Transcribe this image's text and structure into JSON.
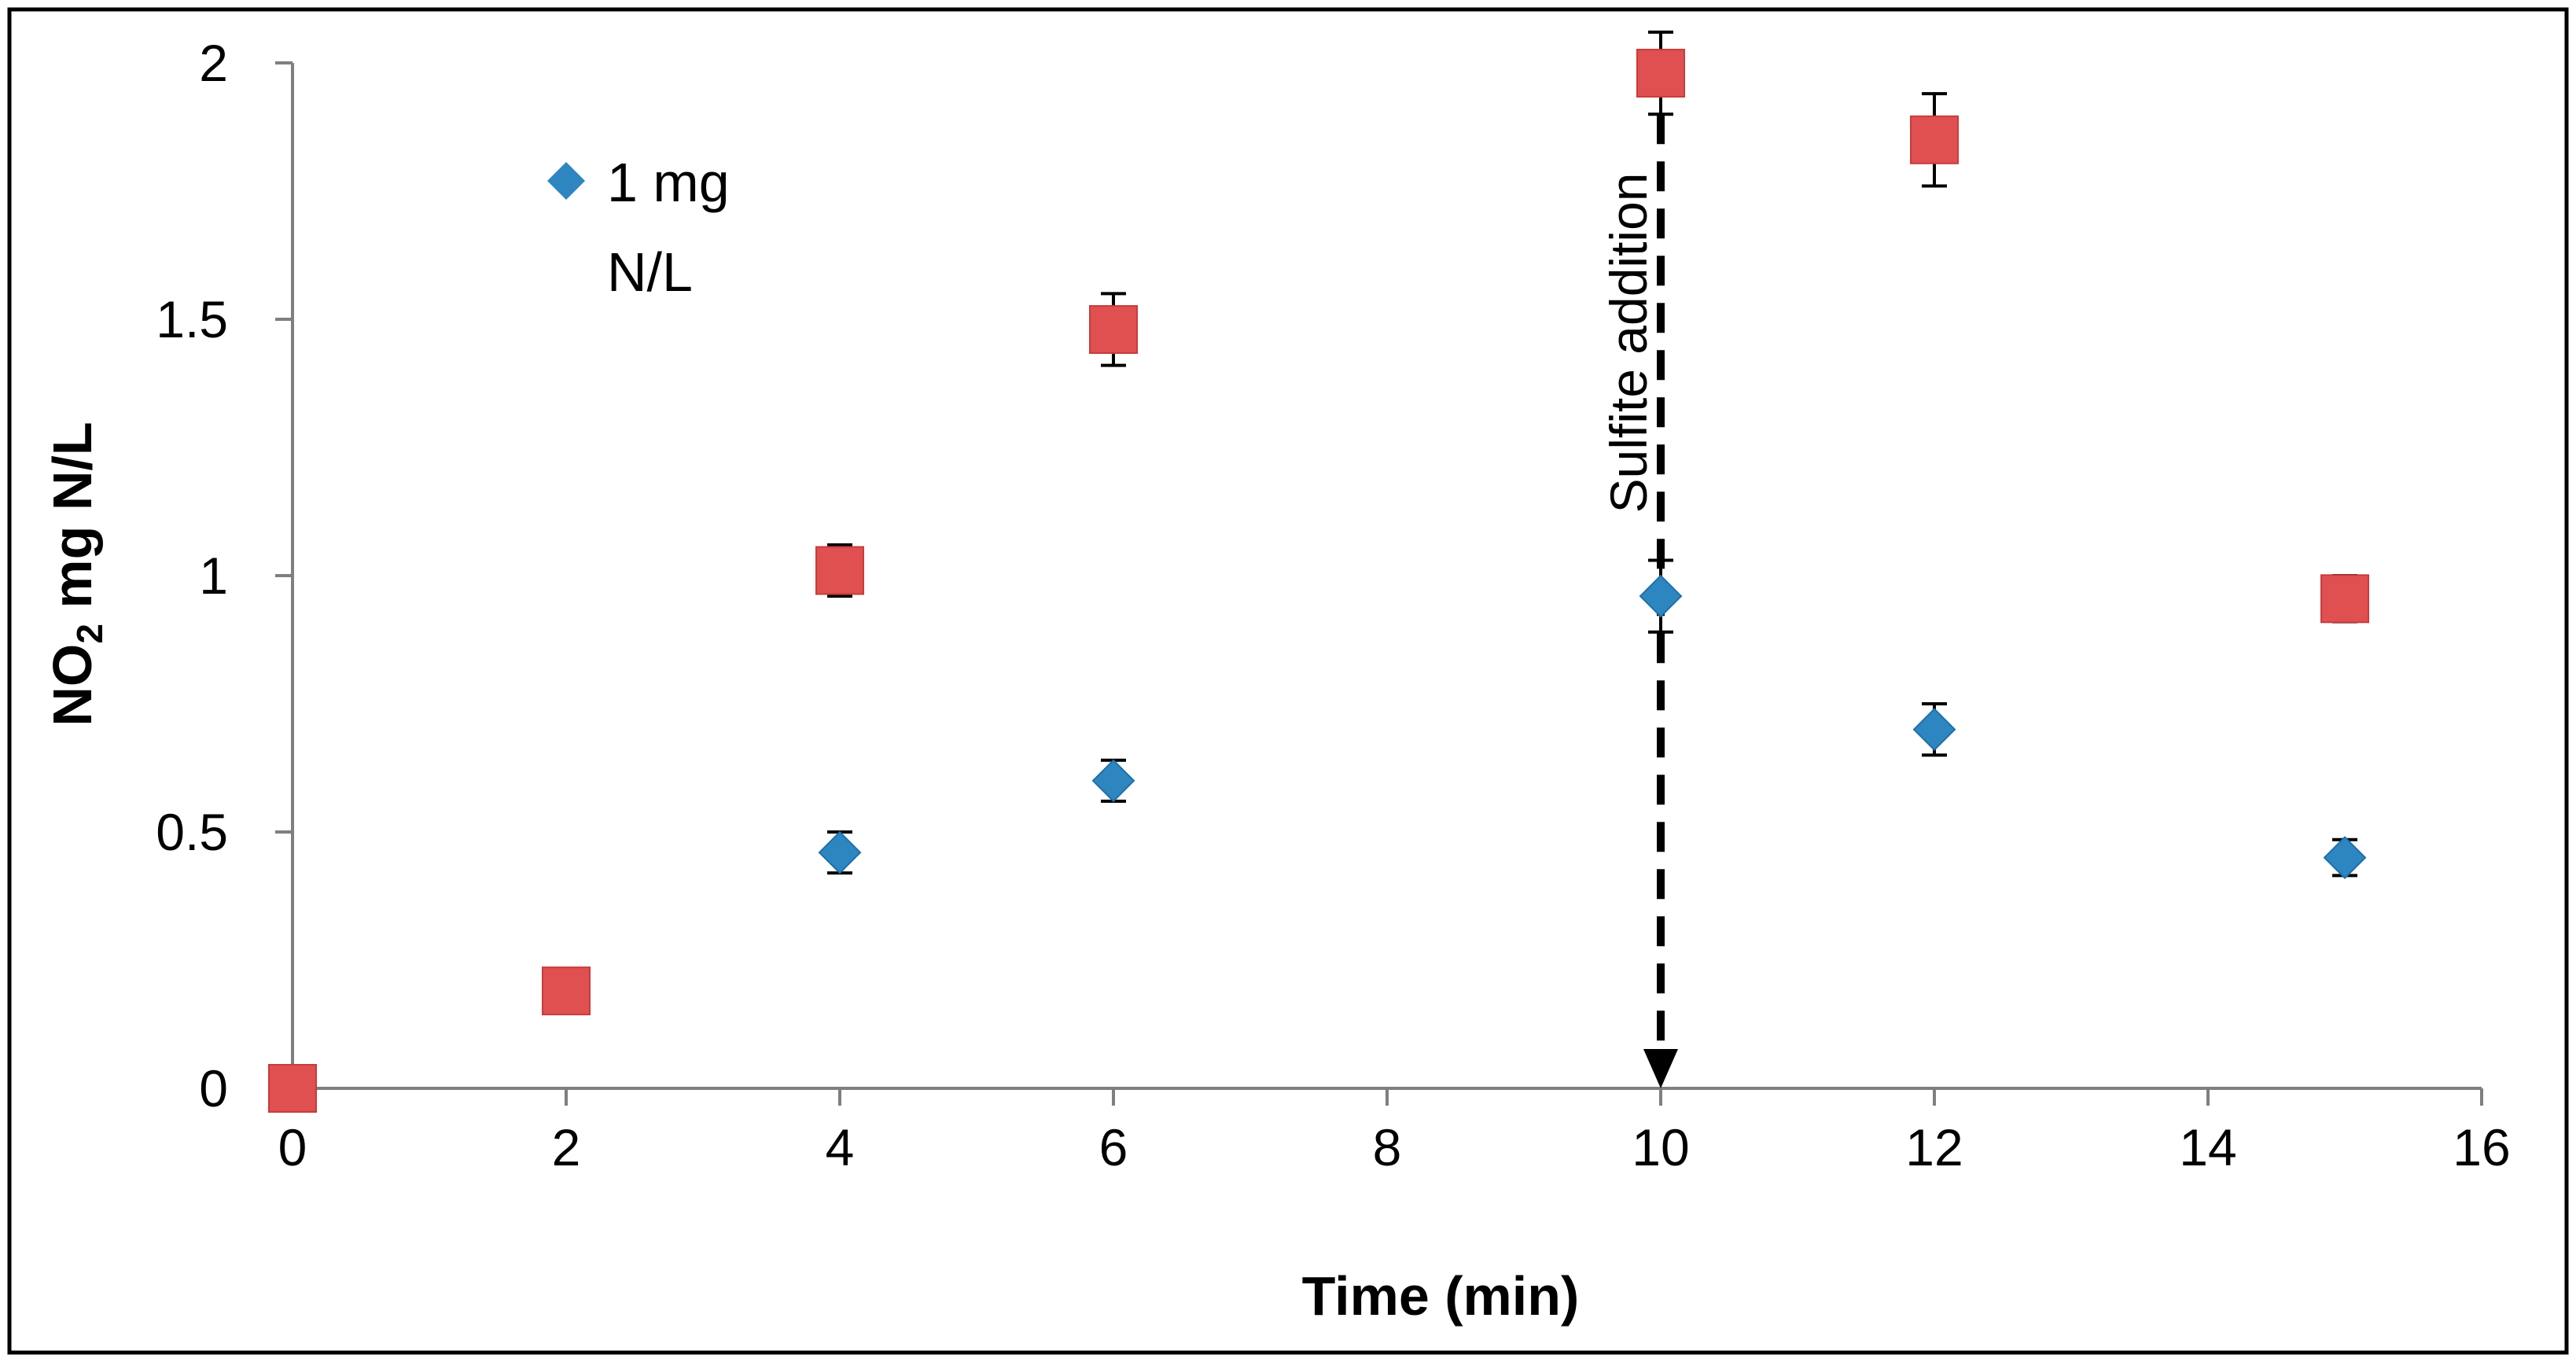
{
  "chart_data": {
    "type": "scatter",
    "title": "",
    "xlabel": "Time (min)",
    "ylabel": {
      "main": "NO",
      "subscript": "2",
      "rest": " mg N/L"
    },
    "xlim": [
      0,
      16
    ],
    "ylim": [
      0,
      2
    ],
    "x_ticks": [
      0,
      2,
      4,
      6,
      8,
      10,
      12,
      14,
      16
    ],
    "y_ticks": [
      0,
      0.5,
      1,
      1.5,
      2
    ],
    "x_tick_labels": [
      "0",
      "2",
      "4",
      "6",
      "8",
      "10",
      "12",
      "14",
      "16"
    ],
    "y_tick_labels": [
      "0",
      "0.5",
      "1",
      "1.5",
      "2"
    ],
    "grid": false,
    "legend": {
      "placement": "top-left",
      "entries": [
        {
          "series": 0,
          "lines": [
            "1 mg",
            "N/L"
          ]
        }
      ]
    },
    "series": [
      {
        "name": "1 mg N/L",
        "marker": "diamond",
        "color": "#2e86c1",
        "x": [
          4,
          6,
          10,
          12,
          15
        ],
        "y": [
          0.46,
          0.6,
          0.96,
          0.7,
          0.45
        ],
        "err": [
          0.04,
          0.04,
          0.07,
          0.05,
          0.035
        ]
      },
      {
        "marker": "square",
        "color": "#e05050",
        "x": [
          0,
          2,
          4,
          6,
          10,
          12,
          15
        ],
        "y": [
          0,
          0.19,
          1.01,
          1.48,
          1.98,
          1.85,
          0.955
        ],
        "err": [
          0,
          0.04,
          0.05,
          0.07,
          0.08,
          0.09,
          0.045
        ]
      }
    ],
    "annotations": [
      {
        "text": "Sulfite addition",
        "x": 10,
        "y_from": 1.9,
        "y_to": 0,
        "style": "dashed-arrow"
      }
    ]
  }
}
